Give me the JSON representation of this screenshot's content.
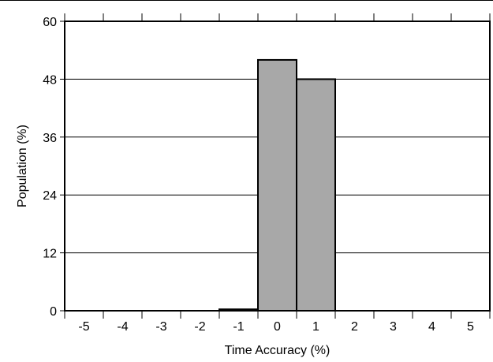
{
  "chart_data": {
    "type": "bar",
    "title": "",
    "xlabel": "Time Accuracy (%)",
    "ylabel": "Population (%)",
    "categories": [
      "-5",
      "-4",
      "-3",
      "-2",
      "-1",
      "0",
      "1",
      "2",
      "3",
      "4",
      "5"
    ],
    "values": [
      0,
      0,
      0,
      0,
      0.3,
      52,
      48,
      0,
      0,
      0,
      0
    ],
    "ylim": [
      0,
      60
    ],
    "yticks": [
      "0",
      "12",
      "24",
      "36",
      "48",
      "60"
    ],
    "grid": true,
    "legend": "none",
    "bar_color": "#a8a8a8",
    "bar_edge_color": "#000000"
  }
}
